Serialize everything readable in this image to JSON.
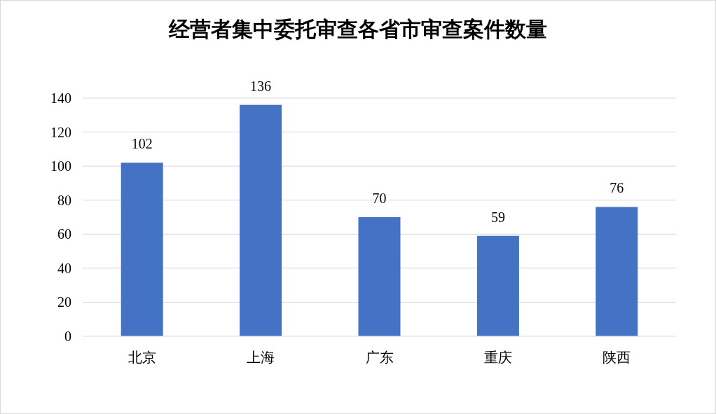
{
  "chart_data": {
    "type": "bar",
    "title": "经营者集中委托审查各省市审查案件数量",
    "categories": [
      "北京",
      "上海",
      "广东",
      "重庆",
      "陕西"
    ],
    "values": [
      102,
      136,
      70,
      59,
      76
    ],
    "color": "#4472c4",
    "ylim": [
      0,
      140
    ],
    "yticks": [
      0,
      20,
      40,
      60,
      80,
      100,
      120,
      140
    ],
    "grid": "y",
    "data_labels": true
  }
}
